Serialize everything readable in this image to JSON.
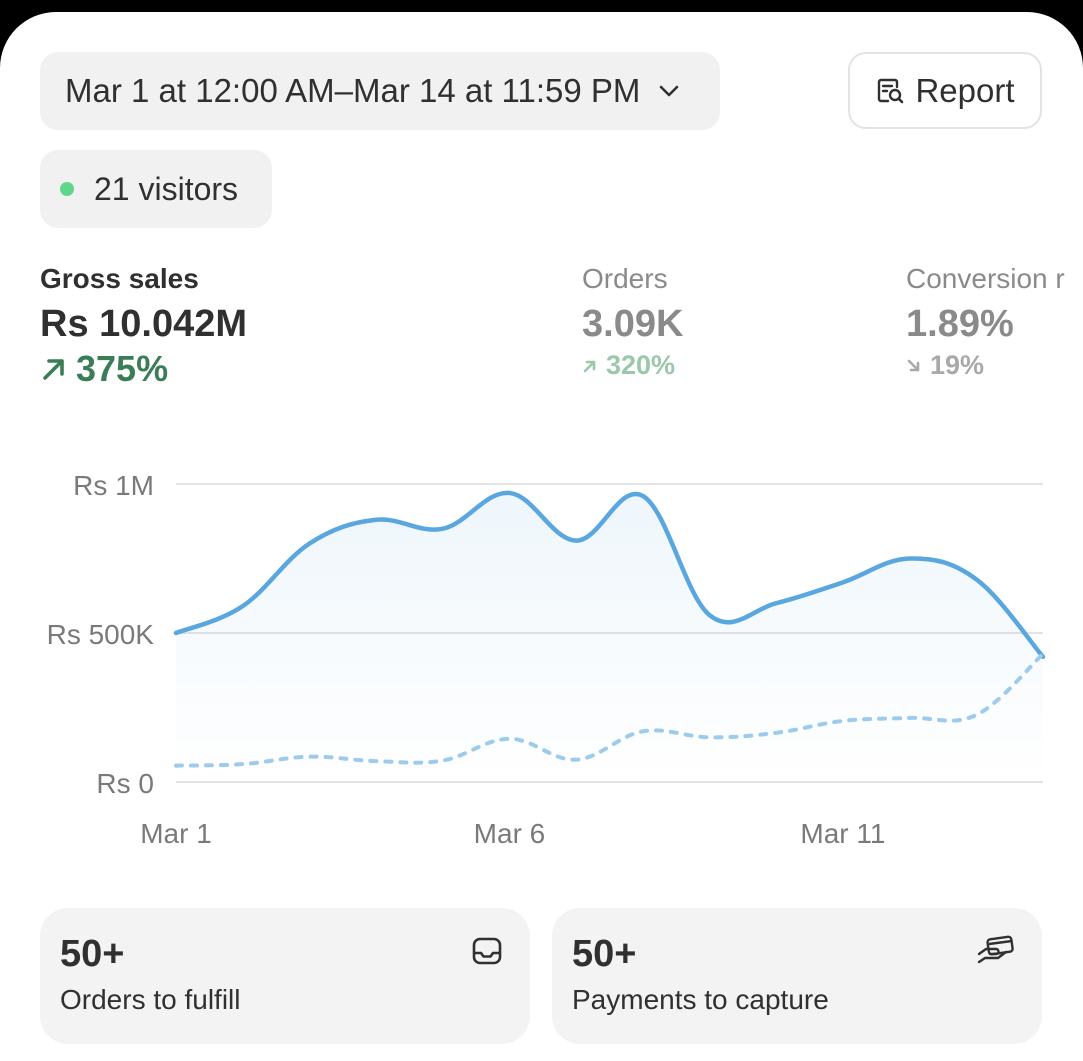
{
  "date_range": {
    "label": "Mar 1 at 12:00 AM–Mar 14 at 11:59 PM",
    "icon": "chevron-down-icon"
  },
  "report": {
    "label": "Report",
    "icon": "report-search-icon"
  },
  "visitors": {
    "label": "21 visitors",
    "dot_color": "#5fd68a"
  },
  "metrics": [
    {
      "label": "Gross sales",
      "value": "Rs 10.042M",
      "change": "375%",
      "direction": "up"
    },
    {
      "label": "Orders",
      "value": "3.09K",
      "change": "320%",
      "direction": "up"
    },
    {
      "label": "Conversion r",
      "value": "1.89%",
      "change": "19%",
      "direction": "down"
    }
  ],
  "chart_data": {
    "type": "line",
    "y_ticks": [
      "Rs 1M",
      "Rs 500K",
      "Rs 0"
    ],
    "x_ticks": [
      "Mar 1",
      "Mar 6",
      "Mar 11"
    ],
    "x": [
      "Mar 1",
      "Mar 2",
      "Mar 3",
      "Mar 4",
      "Mar 5",
      "Mar 6",
      "Mar 7",
      "Mar 8",
      "Mar 9",
      "Mar 10",
      "Mar 11",
      "Mar 12",
      "Mar 13",
      "Mar 14"
    ],
    "ylim": [
      0,
      1000000
    ],
    "grid": true,
    "series": [
      {
        "style": "solid",
        "color": "#5aa7df",
        "values": [
          500000,
          590000,
          800000,
          880000,
          850000,
          970000,
          810000,
          960000,
          560000,
          600000,
          670000,
          750000,
          680000,
          420000
        ]
      },
      {
        "style": "dotted",
        "color": "#9ccbec",
        "values": [
          55000,
          60000,
          85000,
          70000,
          72000,
          145000,
          75000,
          170000,
          150000,
          165000,
          205000,
          215000,
          225000,
          430000
        ]
      }
    ]
  },
  "cards": [
    {
      "count": "50+",
      "label": "Orders to fulfill",
      "icon": "inbox-icon"
    },
    {
      "count": "50+",
      "label": "Payments to capture",
      "icon": "hand-card-icon"
    }
  ],
  "colors": {
    "up_primary": "#3b7d57",
    "up_faded": "#9bc7aa",
    "line": "#5aa7df"
  }
}
